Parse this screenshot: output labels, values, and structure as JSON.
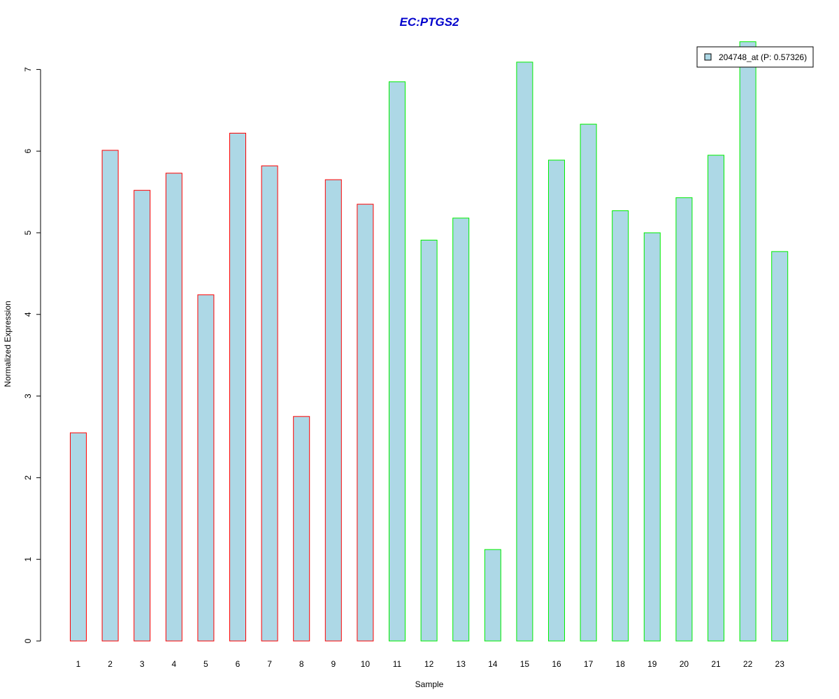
{
  "chart_data": {
    "type": "bar",
    "title": "EC:PTGS2",
    "xlabel": "Sample",
    "ylabel": "Normalized Expression",
    "categories": [
      "1",
      "2",
      "3",
      "4",
      "5",
      "6",
      "7",
      "8",
      "9",
      "10",
      "11",
      "12",
      "13",
      "14",
      "15",
      "16",
      "17",
      "18",
      "19",
      "20",
      "21",
      "22",
      "23"
    ],
    "series": [
      {
        "name": "204748_at (P: 0.57326)",
        "values": [
          2.55,
          6.01,
          5.52,
          5.73,
          4.24,
          6.22,
          5.82,
          2.75,
          5.65,
          5.35,
          6.85,
          4.91,
          5.18,
          1.12,
          7.09,
          5.89,
          6.33,
          5.27,
          5.0,
          5.43,
          5.95,
          7.34,
          4.77
        ],
        "fill": "#add8e6",
        "edge_colors": [
          "#ff0000",
          "#ff0000",
          "#ff0000",
          "#ff0000",
          "#ff0000",
          "#ff0000",
          "#ff0000",
          "#ff0000",
          "#ff0000",
          "#ff0000",
          "#00ee00",
          "#00ee00",
          "#00ee00",
          "#00ee00",
          "#00ee00",
          "#00ee00",
          "#00ee00",
          "#00ee00",
          "#00ee00",
          "#00ee00",
          "#00ee00",
          "#00ee00",
          "#00ee00"
        ]
      }
    ],
    "ylim": [
      0,
      7.34
    ],
    "yticks": [
      "0",
      "1",
      "2",
      "3",
      "4",
      "5",
      "6",
      "7"
    ],
    "grid": false,
    "legend_position": "top-right",
    "colors": {
      "title": "#0000cc",
      "group1_edge": "#ff0000",
      "group2_edge": "#00ee00",
      "bar_fill": "#add8e6"
    }
  }
}
